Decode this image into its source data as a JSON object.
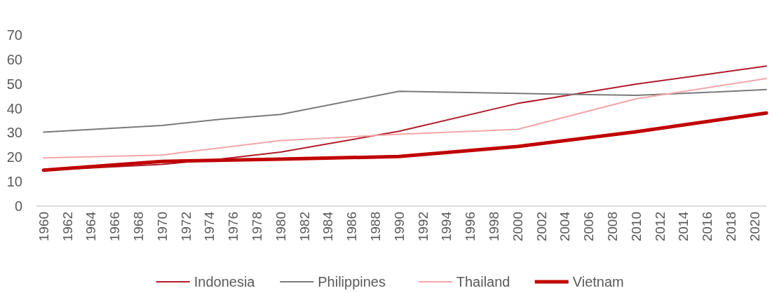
{
  "chart_data": {
    "type": "line",
    "xlim": [
      1959.4,
      2021
    ],
    "xticks": [
      1960,
      1962,
      1964,
      1966,
      1968,
      1970,
      1972,
      1974,
      1976,
      1978,
      1980,
      1982,
      1984,
      1986,
      1988,
      1990,
      1992,
      1994,
      1996,
      1998,
      2000,
      2002,
      2004,
      2006,
      2008,
      2010,
      2012,
      2014,
      2016,
      2018,
      2020
    ],
    "ylim": [
      0,
      70
    ],
    "yticks": [
      0,
      10,
      20,
      30,
      40,
      50,
      60,
      70
    ],
    "grid": false,
    "legend": "bottom",
    "marker": "none",
    "line_style": "solid",
    "series": [
      {
        "name": "Indonesia",
        "color": "#b01c2a",
        "x": [
          1960,
          1970,
          1975,
          1980,
          1990,
          2000,
          2010,
          2021
        ],
        "values": [
          14.6,
          17.1,
          19.3,
          22.1,
          30.6,
          42.0,
          49.9,
          57.3
        ]
      },
      {
        "name": "Philippines",
        "color": "#7a7a7a",
        "x": [
          1960,
          1970,
          1975,
          1980,
          1990,
          2000,
          2010,
          2015,
          2021
        ],
        "values": [
          30.3,
          33.0,
          35.6,
          37.5,
          47.0,
          46.1,
          45.3,
          46.3,
          47.7
        ]
      },
      {
        "name": "Thailand",
        "color": "#f4a6aa",
        "x": [
          1960,
          1970,
          1980,
          1990,
          2000,
          2010,
          2021
        ],
        "values": [
          19.7,
          20.9,
          26.8,
          29.4,
          31.4,
          43.9,
          52.2
        ]
      },
      {
        "name": "Vietnam",
        "color": "#c00000",
        "x": [
          1960,
          1970,
          1980,
          1990,
          2000,
          2010,
          2021
        ],
        "values": [
          14.7,
          18.3,
          19.2,
          20.3,
          24.4,
          30.4,
          38.1
        ]
      }
    ]
  }
}
